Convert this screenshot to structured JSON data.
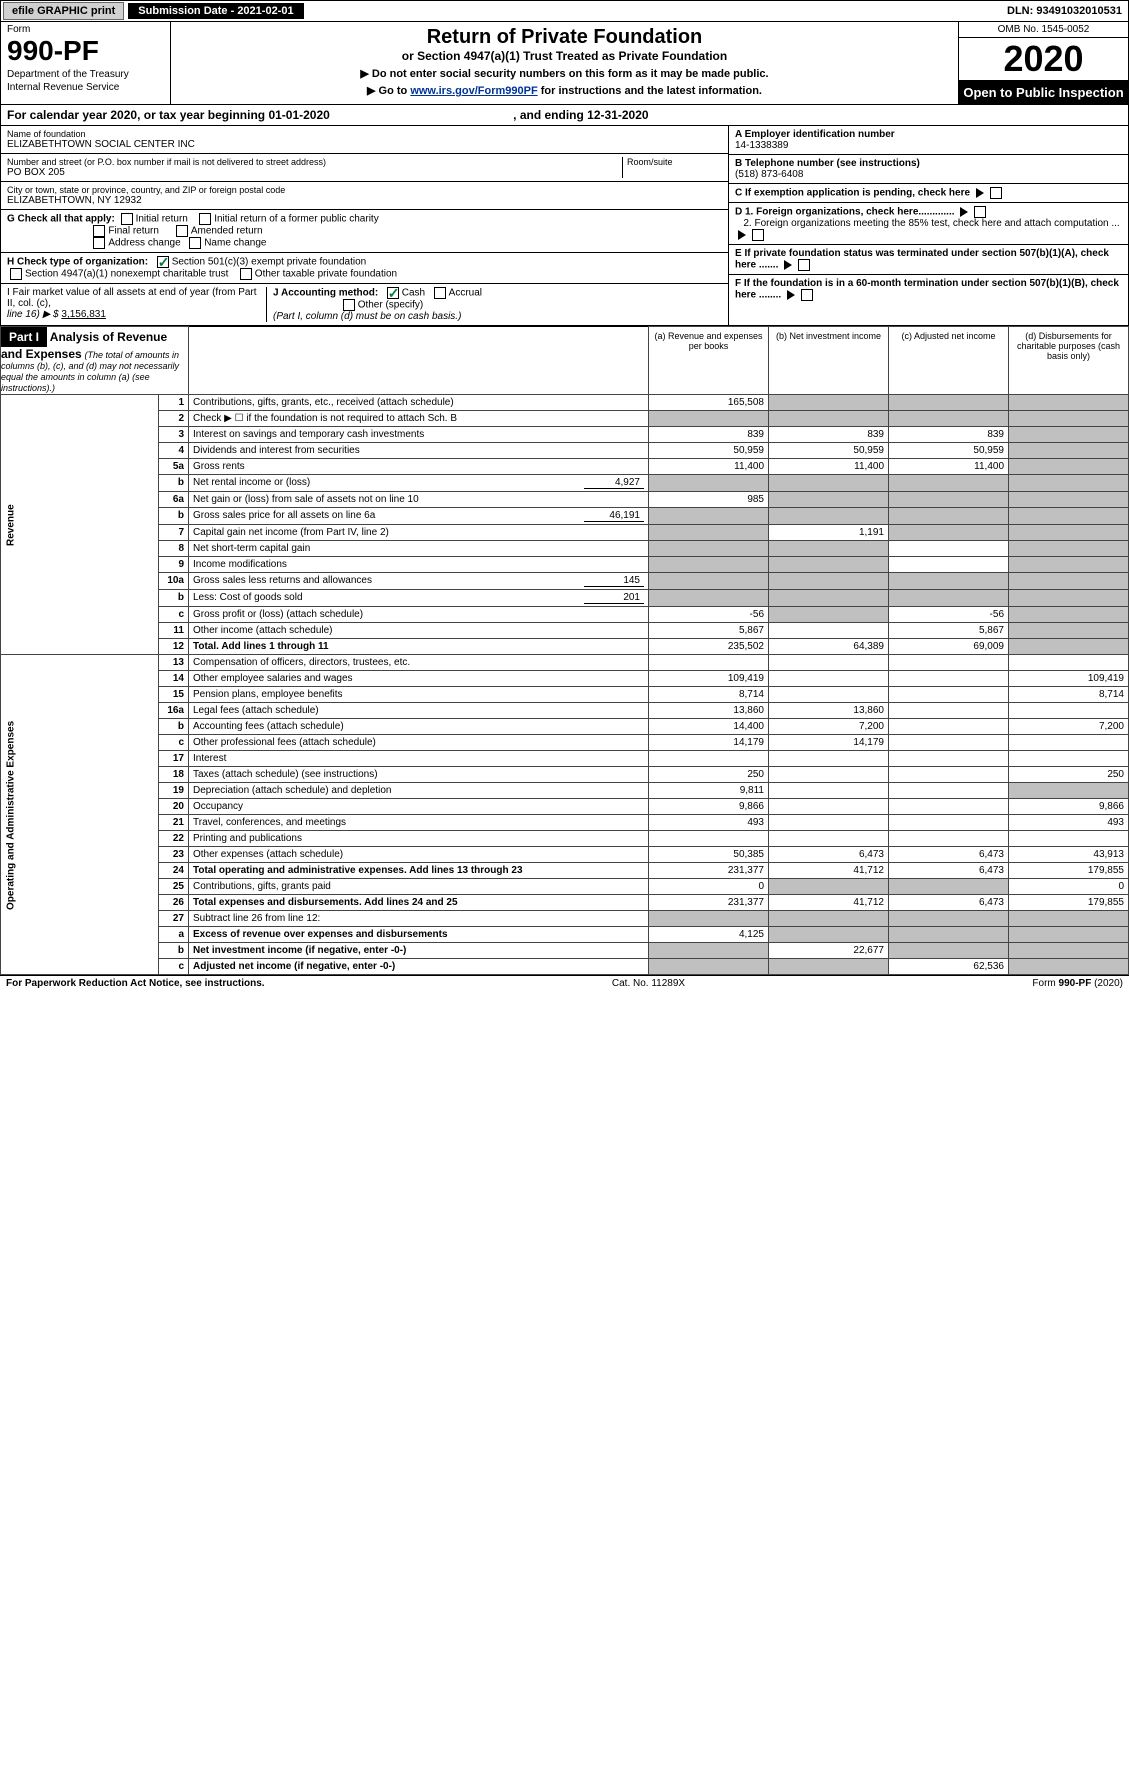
{
  "top": {
    "efile_label": "efile GRAPHIC print",
    "submission_label": "Submission Date - 2021-02-01",
    "dln": "DLN: 93491032010531"
  },
  "header": {
    "form_word": "Form",
    "form_number": "990-PF",
    "dept1": "Department of the Treasury",
    "dept2": "Internal Revenue Service",
    "title": "Return of Private Foundation",
    "subtitle": "or Section 4947(a)(1) Trust Treated as Private Foundation",
    "note1": "▶ Do not enter social security numbers on this form as it may be made public.",
    "note2_pre": "▶ Go to ",
    "note2_link": "www.irs.gov/Form990PF",
    "note2_post": " for instructions and the latest information.",
    "omb": "OMB No. 1545-0052",
    "year": "2020",
    "open": "Open to Public Inspection"
  },
  "cal_year": {
    "pre": "For calendar year 2020, or tax year beginning 01-01-2020",
    "mid": ", and ending 12-31-2020"
  },
  "info": {
    "name_label": "Name of foundation",
    "name": "ELIZABETHTOWN SOCIAL CENTER INC",
    "addr_label": "Number and street (or P.O. box number if mail is not delivered to street address)",
    "addr": "PO BOX 205",
    "room_label": "Room/suite",
    "city_label": "City or town, state or province, country, and ZIP or foreign postal code",
    "city": "ELIZABETHTOWN, NY  12932",
    "ein_label": "A Employer identification number",
    "ein": "14-1338389",
    "phone_label": "B Telephone number (see instructions)",
    "phone": "(518) 873-6408",
    "c_label": "C If exemption application is pending, check here",
    "d1_label": "D 1. Foreign organizations, check here.............",
    "d2_label": "2. Foreign organizations meeting the 85% test, check here and attach computation ...",
    "e_label": "E  If private foundation status was terminated under section 507(b)(1)(A), check here .......",
    "f_label": "F  If the foundation is in a 60-month termination under section 507(b)(1)(B), check here ........",
    "g_label": "G Check all that apply:",
    "g_opts": [
      "Initial return",
      "Initial return of a former public charity",
      "Final return",
      "Amended return",
      "Address change",
      "Name change"
    ],
    "h_label": "H Check type of organization:",
    "h_opt1": "Section 501(c)(3) exempt private foundation",
    "h_opt2": "Section 4947(a)(1) nonexempt charitable trust",
    "h_opt3": "Other taxable private foundation",
    "i_label": "I Fair market value of all assets at end of year (from Part II, col. (c),",
    "i_line": "line 16) ▶ $",
    "i_val": "3,156,831",
    "j_label": "J Accounting method:",
    "j_opts": [
      "Cash",
      "Accrual"
    ],
    "j_other": "Other (specify)",
    "j_note": "(Part I, column (d) must be on cash basis.)"
  },
  "part1": {
    "label": "Part I",
    "title": "Analysis of Revenue and Expenses",
    "title_note": "(The total of amounts in columns (b), (c), and (d) may not necessarily equal the amounts in column (a) (see instructions).)",
    "col_a": "(a) Revenue and expenses per books",
    "col_b": "(b) Net investment income",
    "col_c": "(c) Adjusted net income",
    "col_d": "(d) Disbursements for charitable purposes (cash basis only)",
    "side_rev": "Revenue",
    "side_exp": "Operating and Administrative Expenses"
  },
  "rows": [
    {
      "n": "1",
      "desc": "Contributions, gifts, grants, etc., received (attach schedule)",
      "a": "165,508",
      "b": "",
      "c": "",
      "d": "",
      "grey_b": true,
      "grey_c": true,
      "grey_d": true
    },
    {
      "n": "2",
      "desc": "Check ▶ ☐ if the foundation is not required to attach Sch. B",
      "a": "",
      "b": "",
      "c": "",
      "d": "",
      "grey_a": true,
      "grey_b": true,
      "grey_c": true,
      "grey_d": true
    },
    {
      "n": "3",
      "desc": "Interest on savings and temporary cash investments",
      "a": "839",
      "b": "839",
      "c": "839",
      "d": "",
      "grey_d": true
    },
    {
      "n": "4",
      "desc": "Dividends and interest from securities",
      "a": "50,959",
      "b": "50,959",
      "c": "50,959",
      "d": "",
      "grey_d": true
    },
    {
      "n": "5a",
      "desc": "Gross rents",
      "a": "11,400",
      "b": "11,400",
      "c": "11,400",
      "d": "",
      "grey_d": true
    },
    {
      "n": "b",
      "desc": "Net rental income or (loss)",
      "inline": "4,927",
      "a": "",
      "b": "",
      "c": "",
      "d": "",
      "grey_a": true,
      "grey_b": true,
      "grey_c": true,
      "grey_d": true
    },
    {
      "n": "6a",
      "desc": "Net gain or (loss) from sale of assets not on line 10",
      "a": "985",
      "b": "",
      "c": "",
      "d": "",
      "grey_b": true,
      "grey_c": true,
      "grey_d": true
    },
    {
      "n": "b",
      "desc": "Gross sales price for all assets on line 6a",
      "inline": "46,191",
      "a": "",
      "b": "",
      "c": "",
      "d": "",
      "grey_a": true,
      "grey_b": true,
      "grey_c": true,
      "grey_d": true
    },
    {
      "n": "7",
      "desc": "Capital gain net income (from Part IV, line 2)",
      "a": "",
      "b": "1,191",
      "c": "",
      "d": "",
      "grey_a": true,
      "grey_c": true,
      "grey_d": true
    },
    {
      "n": "8",
      "desc": "Net short-term capital gain",
      "a": "",
      "b": "",
      "c": "",
      "d": "",
      "grey_a": true,
      "grey_b": true,
      "grey_d": true
    },
    {
      "n": "9",
      "desc": "Income modifications",
      "a": "",
      "b": "",
      "c": "",
      "d": "",
      "grey_a": true,
      "grey_b": true,
      "grey_d": true
    },
    {
      "n": "10a",
      "desc": "Gross sales less returns and allowances",
      "inline": "145",
      "a": "",
      "b": "",
      "c": "",
      "d": "",
      "grey_a": true,
      "grey_b": true,
      "grey_c": true,
      "grey_d": true
    },
    {
      "n": "b",
      "desc": "Less: Cost of goods sold",
      "inline": "201",
      "a": "",
      "b": "",
      "c": "",
      "d": "",
      "grey_a": true,
      "grey_b": true,
      "grey_c": true,
      "grey_d": true
    },
    {
      "n": "c",
      "desc": "Gross profit or (loss) (attach schedule)",
      "a": "-56",
      "b": "",
      "c": "-56",
      "d": "",
      "grey_b": true,
      "grey_d": true
    },
    {
      "n": "11",
      "desc": "Other income (attach schedule)",
      "a": "5,867",
      "b": "",
      "c": "5,867",
      "d": "",
      "grey_d": true
    },
    {
      "n": "12",
      "desc": "Total. Add lines 1 through 11",
      "bold": true,
      "a": "235,502",
      "b": "64,389",
      "c": "69,009",
      "d": "",
      "grey_d": true
    },
    {
      "n": "13",
      "desc": "Compensation of officers, directors, trustees, etc.",
      "a": "",
      "b": "",
      "c": "",
      "d": ""
    },
    {
      "n": "14",
      "desc": "Other employee salaries and wages",
      "a": "109,419",
      "b": "",
      "c": "",
      "d": "109,419"
    },
    {
      "n": "15",
      "desc": "Pension plans, employee benefits",
      "a": "8,714",
      "b": "",
      "c": "",
      "d": "8,714"
    },
    {
      "n": "16a",
      "desc": "Legal fees (attach schedule)",
      "a": "13,860",
      "b": "13,860",
      "c": "",
      "d": ""
    },
    {
      "n": "b",
      "desc": "Accounting fees (attach schedule)",
      "a": "14,400",
      "b": "7,200",
      "c": "",
      "d": "7,200"
    },
    {
      "n": "c",
      "desc": "Other professional fees (attach schedule)",
      "a": "14,179",
      "b": "14,179",
      "c": "",
      "d": ""
    },
    {
      "n": "17",
      "desc": "Interest",
      "a": "",
      "b": "",
      "c": "",
      "d": ""
    },
    {
      "n": "18",
      "desc": "Taxes (attach schedule) (see instructions)",
      "a": "250",
      "b": "",
      "c": "",
      "d": "250"
    },
    {
      "n": "19",
      "desc": "Depreciation (attach schedule) and depletion",
      "a": "9,811",
      "b": "",
      "c": "",
      "d": "",
      "grey_d": true
    },
    {
      "n": "20",
      "desc": "Occupancy",
      "a": "9,866",
      "b": "",
      "c": "",
      "d": "9,866"
    },
    {
      "n": "21",
      "desc": "Travel, conferences, and meetings",
      "a": "493",
      "b": "",
      "c": "",
      "d": "493"
    },
    {
      "n": "22",
      "desc": "Printing and publications",
      "a": "",
      "b": "",
      "c": "",
      "d": ""
    },
    {
      "n": "23",
      "desc": "Other expenses (attach schedule)",
      "a": "50,385",
      "b": "6,473",
      "c": "6,473",
      "d": "43,913"
    },
    {
      "n": "24",
      "desc": "Total operating and administrative expenses. Add lines 13 through 23",
      "bold": true,
      "a": "231,377",
      "b": "41,712",
      "c": "6,473",
      "d": "179,855"
    },
    {
      "n": "25",
      "desc": "Contributions, gifts, grants paid",
      "a": "0",
      "b": "",
      "c": "",
      "d": "0",
      "grey_b": true,
      "grey_c": true
    },
    {
      "n": "26",
      "desc": "Total expenses and disbursements. Add lines 24 and 25",
      "bold": true,
      "a": "231,377",
      "b": "41,712",
      "c": "6,473",
      "d": "179,855"
    },
    {
      "n": "27",
      "desc": "Subtract line 26 from line 12:",
      "a": "",
      "b": "",
      "c": "",
      "d": "",
      "grey_a": true,
      "grey_b": true,
      "grey_c": true,
      "grey_d": true
    },
    {
      "n": "a",
      "desc": "Excess of revenue over expenses and disbursements",
      "bold": true,
      "a": "4,125",
      "b": "",
      "c": "",
      "d": "",
      "grey_b": true,
      "grey_c": true,
      "grey_d": true
    },
    {
      "n": "b",
      "desc": "Net investment income (if negative, enter -0-)",
      "bold": true,
      "a": "",
      "b": "22,677",
      "c": "",
      "d": "",
      "grey_a": true,
      "grey_c": true,
      "grey_d": true
    },
    {
      "n": "c",
      "desc": "Adjusted net income (if negative, enter -0-)",
      "bold": true,
      "a": "",
      "b": "",
      "c": "62,536",
      "d": "",
      "grey_a": true,
      "grey_b": true,
      "grey_d": true
    }
  ],
  "footer": {
    "left": "For Paperwork Reduction Act Notice, see instructions.",
    "mid": "Cat. No. 11289X",
    "right": "Form 990-PF (2020)"
  },
  "colors": {
    "black": "#000000",
    "grey_cell": "#c0c0c0",
    "link": "#003399",
    "check_green": "#0a7a3a"
  }
}
